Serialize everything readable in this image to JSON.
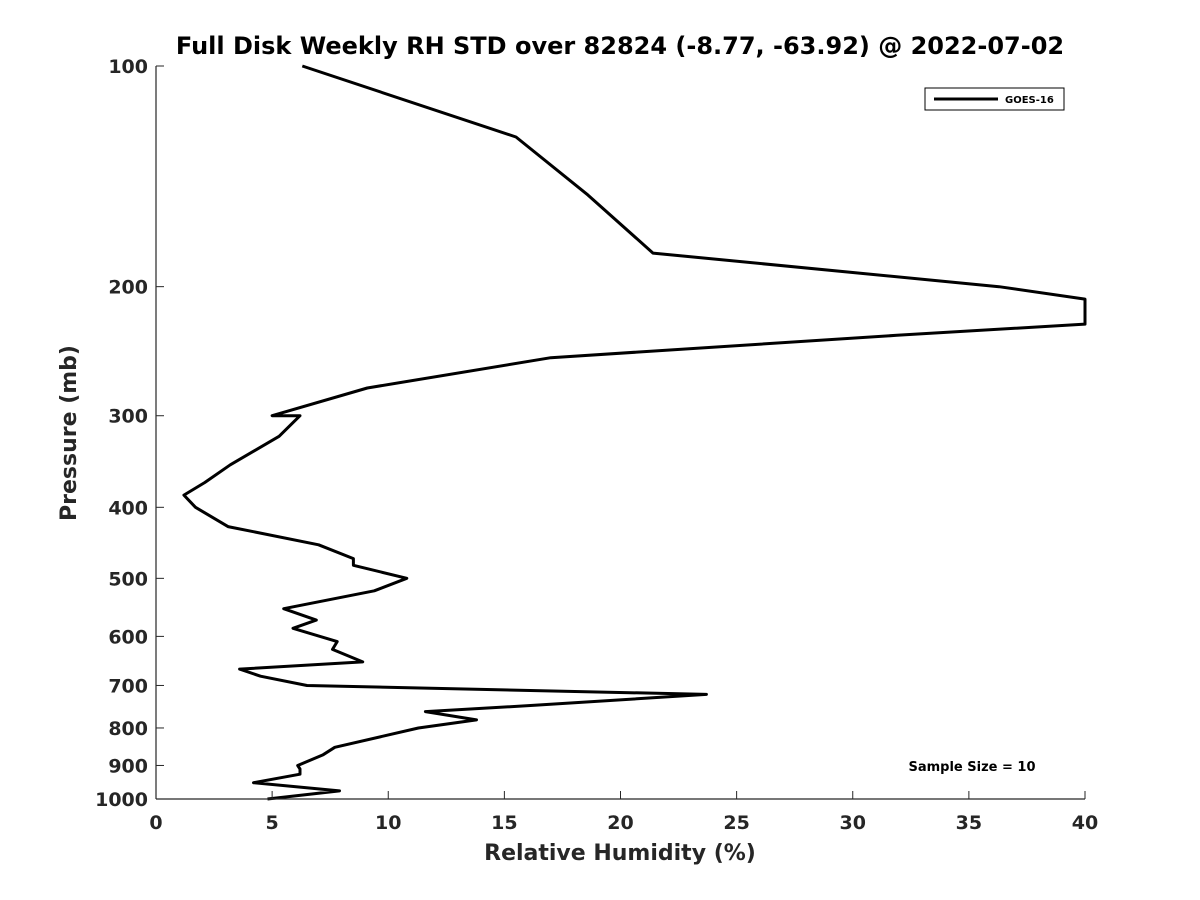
{
  "chart_data": {
    "type": "line",
    "title": "Full Disk Weekly RH STD over 82824 (-8.77, -63.92) @ 2022-07-02",
    "xlabel": "Relative Humidity (%)",
    "ylabel": "Pressure (mb)",
    "xlim": [
      0,
      40
    ],
    "ylim": [
      100,
      1000
    ],
    "yscale": "log",
    "y_reversed": true,
    "x_ticks": [
      0,
      5,
      10,
      15,
      20,
      25,
      30,
      35,
      40
    ],
    "y_ticks": [
      100,
      200,
      300,
      400,
      500,
      600,
      700,
      800,
      900,
      1000
    ],
    "grid": false,
    "legend_position": "top-right",
    "annotation": "Sample Size = 10",
    "series": [
      {
        "name": "GOES-16",
        "color": "#000000",
        "points": [
          [
            6.3,
            100
          ],
          [
            15.5,
            125
          ],
          [
            18.6,
            150
          ],
          [
            21.4,
            180
          ],
          [
            36.3,
            200
          ],
          [
            40.0,
            208
          ],
          [
            40.0,
            225
          ],
          [
            31.9,
            233
          ],
          [
            17.0,
            250
          ],
          [
            9.1,
            275
          ],
          [
            5.0,
            300
          ],
          [
            6.2,
            300
          ],
          [
            5.3,
            320
          ],
          [
            3.2,
            350
          ],
          [
            2.1,
            370
          ],
          [
            1.2,
            385
          ],
          [
            1.7,
            400
          ],
          [
            3.1,
            425
          ],
          [
            7.0,
            450
          ],
          [
            8.5,
            470
          ],
          [
            8.5,
            480
          ],
          [
            10.8,
            500
          ],
          [
            9.4,
            520
          ],
          [
            5.5,
            550
          ],
          [
            6.9,
            570
          ],
          [
            5.9,
            585
          ],
          [
            7.8,
            610
          ],
          [
            7.6,
            625
          ],
          [
            8.9,
            650
          ],
          [
            3.6,
            665
          ],
          [
            4.5,
            680
          ],
          [
            6.5,
            700
          ],
          [
            23.7,
            720
          ],
          [
            16.3,
            745
          ],
          [
            11.6,
            760
          ],
          [
            13.8,
            780
          ],
          [
            11.3,
            800
          ],
          [
            7.7,
            850
          ],
          [
            7.2,
            870
          ],
          [
            6.1,
            900
          ],
          [
            6.2,
            910
          ],
          [
            6.2,
            925
          ],
          [
            4.2,
            950
          ],
          [
            7.9,
            975
          ],
          [
            4.8,
            1000
          ]
        ]
      }
    ]
  }
}
